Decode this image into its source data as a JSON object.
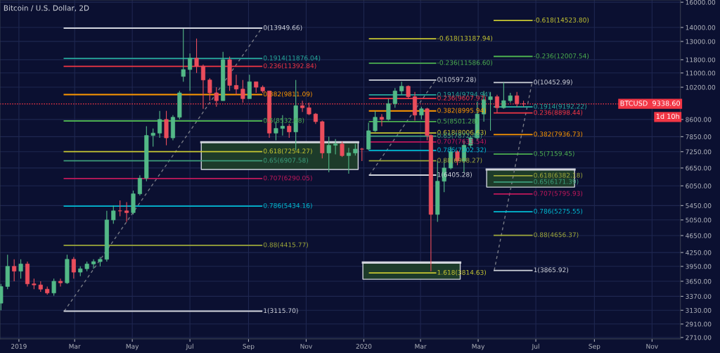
{
  "chart_data": {
    "type": "candlestick",
    "title": "Bitcoin / U.S. Dollar, 2D",
    "xlim": [
      "2018-12-12",
      "2020-12-01"
    ],
    "ylim": [
      2690,
      16190
    ],
    "log": true,
    "grid": true,
    "xticks": [
      {
        "value": "2019-01-01",
        "label": "2019"
      },
      {
        "value": "2019-03-01",
        "label": "Mar"
      },
      {
        "value": "2019-05-01",
        "label": "May"
      },
      {
        "value": "2019-07-01",
        "label": "Jul"
      },
      {
        "value": "2019-09-01",
        "label": "Sep"
      },
      {
        "value": "2019-11-01",
        "label": "Nov"
      },
      {
        "value": "2020-01-01",
        "label": "2020"
      },
      {
        "value": "2020-03-01",
        "label": "Mar"
      },
      {
        "value": "2020-05-01",
        "label": "May"
      },
      {
        "value": "2020-07-01",
        "label": "Jul"
      },
      {
        "value": "2020-09-01",
        "label": "Sep"
      },
      {
        "value": "2020-11-01",
        "label": "Nov"
      }
    ],
    "yticks": [
      {
        "value": 2710,
        "label": "2710.00"
      },
      {
        "value": 2910,
        "label": "2910.00"
      },
      {
        "value": 3130,
        "label": "3130.00"
      },
      {
        "value": 3370,
        "label": "3370.00"
      },
      {
        "value": 3650,
        "label": "3650.00"
      },
      {
        "value": 3950,
        "label": "3950.00"
      },
      {
        "value": 4250,
        "label": "4250.00"
      },
      {
        "value": 4650,
        "label": "4650.00"
      },
      {
        "value": 5050,
        "label": "5050.00"
      },
      {
        "value": 5450,
        "label": "5450.00"
      },
      {
        "value": 6050,
        "label": "6050.00"
      },
      {
        "value": 6650,
        "label": "6650.00"
      },
      {
        "value": 7250,
        "label": "7250.00"
      },
      {
        "value": 7850,
        "label": "7850.00"
      },
      {
        "value": 8600,
        "label": "8600.00"
      },
      {
        "value": 10200,
        "label": "10200.00"
      },
      {
        "value": 11000,
        "label": "11000.00"
      },
      {
        "value": 11800,
        "label": "11800.00"
      },
      {
        "value": 13000,
        "label": "13000.00"
      },
      {
        "value": 14000,
        "label": "14000.00"
      },
      {
        "value": 16000,
        "label": "16000.00"
      }
    ],
    "ref_lines": [
      {
        "axis": "y",
        "value": 9338.6,
        "label": "BTCUSD  9338.60",
        "color": "#f23645",
        "line_style": "dotted"
      }
    ],
    "annotations": [
      "1d 10h"
    ],
    "series": [
      {
        "type": "line",
        "x": [
          "2019-07-13",
          "2019-12-26"
        ],
        "values": [
          7625,
          7625
        ],
        "lower": [
          6600,
          6600
        ],
        "upper": [
          7625,
          7625
        ],
        "color": "#d1d4dc"
      },
      {
        "type": "line",
        "x": [
          "2019-12-31",
          "2020-04-12"
        ],
        "values": [
          4030,
          4030
        ],
        "lower": [
          3689,
          3689
        ],
        "upper": [
          4030,
          4030
        ],
        "color": "#d1d4dc"
      },
      {
        "type": "line",
        "x": [
          "2020-05-10",
          "2020-08-11"
        ],
        "values": [
          6600,
          6600
        ],
        "lower": [
          6010,
          6010
        ],
        "upper": [
          6600,
          6600
        ],
        "color": "#d1d4dc"
      },
      {
        "color": "#53b987",
        "x": [
          "2018-12-13",
          "2018-12-20",
          "2019-01-03",
          "2019-02-07",
          "2019-02-21",
          "2019-03-07",
          "2019-03-14",
          "2019-03-21",
          "2019-03-28",
          "2019-04-04",
          "2019-04-11",
          "2019-05-02",
          "2019-05-09",
          "2019-05-16",
          "2019-05-23",
          "2019-05-30",
          "2019-06-13",
          "2019-06-20",
          "2019-06-24",
          "2019-07-01",
          "2019-08-05",
          "2019-09-02",
          "2019-09-30",
          "2019-10-07",
          "2019-10-21",
          "2019-11-25",
          "2019-12-02",
          "2019-12-16",
          "2019-12-23",
          "2020-01-06",
          "2020-01-13",
          "2020-01-27",
          "2020-02-03",
          "2020-02-10",
          "2020-03-02",
          "2020-03-19",
          "2020-03-26",
          "2020-04-02",
          "2020-04-16",
          "2020-04-23",
          "2020-04-30",
          "2020-05-07",
          "2020-05-14",
          "2020-05-28",
          "2020-06-04"
        ],
        "ohlc": [
          [
            3250,
            3600,
            3130,
            3550
          ],
          [
            3550,
            4200,
            3500,
            3950
          ],
          [
            3850,
            4100,
            3700,
            4000
          ],
          [
            3430,
            3700,
            3380,
            3650
          ],
          [
            3620,
            4200,
            3600,
            4100
          ],
          [
            3830,
            3950,
            3750,
            3900
          ],
          [
            3900,
            4050,
            3850,
            4000
          ],
          [
            4000,
            4100,
            3900,
            4050
          ],
          [
            4050,
            4150,
            3950,
            4100
          ],
          [
            4100,
            5300,
            4050,
            5050
          ],
          [
            5050,
            5450,
            4950,
            5300
          ],
          [
            5250,
            5900,
            5200,
            5800
          ],
          [
            5800,
            6400,
            5750,
            6300
          ],
          [
            6300,
            8300,
            6200,
            7900
          ],
          [
            7900,
            8200,
            7450,
            8000
          ],
          [
            8000,
            9000,
            7800,
            8600
          ],
          [
            7800,
            8800,
            7700,
            8700
          ],
          [
            8700,
            10000,
            8600,
            9900
          ],
          [
            10800,
            13900,
            10500,
            11200
          ],
          [
            11200,
            12200,
            10000,
            11900
          ],
          [
            9500,
            12300,
            9500,
            11800
          ],
          [
            9600,
            10900,
            9600,
            10500
          ],
          [
            8000,
            8500,
            7700,
            8200
          ],
          [
            8200,
            8800,
            7900,
            8300
          ],
          [
            8050,
            10600,
            7300,
            9250
          ],
          [
            7200,
            7850,
            6500,
            7500
          ],
          [
            7500,
            7750,
            7150,
            7550
          ],
          [
            7100,
            7400,
            6450,
            7200
          ],
          [
            7200,
            7550,
            7100,
            7350
          ],
          [
            7350,
            8450,
            7300,
            8100
          ],
          [
            8100,
            9000,
            8050,
            8700
          ],
          [
            8600,
            9600,
            8550,
            9350
          ],
          [
            9350,
            10150,
            9150,
            10000
          ],
          [
            10000,
            10500,
            9800,
            10250
          ],
          [
            8800,
            9200,
            8600,
            9100
          ],
          [
            5200,
            6900,
            5000,
            6200
          ],
          [
            6200,
            6950,
            5850,
            6650
          ],
          [
            6650,
            7450,
            6600,
            7250
          ],
          [
            6900,
            7700,
            6500,
            7500
          ],
          [
            7500,
            7900,
            7400,
            7800
          ],
          [
            7800,
            9450,
            7700,
            8850
          ],
          [
            8850,
            10000,
            8500,
            9550
          ],
          [
            9550,
            9950,
            8100,
            9700
          ],
          [
            9150,
            10450,
            9100,
            9500
          ],
          [
            9500,
            9900,
            9400,
            9750
          ]
        ]
      },
      {
        "color": "#eb4d5c",
        "x": [
          "2018-12-27",
          "2019-01-10",
          "2019-01-17",
          "2019-01-24",
          "2019-01-31",
          "2019-02-14",
          "2019-02-28",
          "2019-04-18",
          "2019-04-25",
          "2019-06-06",
          "2019-07-08",
          "2019-07-15",
          "2019-07-22",
          "2019-07-29",
          "2019-08-12",
          "2019-08-19",
          "2019-08-26",
          "2019-09-09",
          "2019-09-16",
          "2019-09-23",
          "2019-10-14",
          "2019-10-28",
          "2019-11-04",
          "2019-11-11",
          "2019-11-18",
          "2019-12-09",
          "2019-12-30",
          "2020-01-20",
          "2020-02-17",
          "2020-02-24",
          "2020-03-08",
          "2020-03-12",
          "2020-04-09",
          "2020-05-21",
          "2020-06-11",
          "2020-06-18"
        ],
        "ohlc": [
          [
            3950,
            4100,
            3650,
            3850
          ],
          [
            4000,
            4050,
            3550,
            3600
          ],
          [
            3600,
            3700,
            3500,
            3580
          ],
          [
            3580,
            3650,
            3450,
            3500
          ],
          [
            3500,
            3550,
            3400,
            3430
          ],
          [
            3650,
            3700,
            3550,
            3620
          ],
          [
            4100,
            4150,
            3700,
            3830
          ],
          [
            5300,
            5600,
            5150,
            5300
          ],
          [
            5300,
            5550,
            5000,
            5250
          ],
          [
            8600,
            9000,
            7500,
            7800
          ],
          [
            11900,
            13200,
            11000,
            11400
          ],
          [
            11400,
            11500,
            9100,
            10600
          ],
          [
            10600,
            10700,
            9500,
            9900
          ],
          [
            9900,
            10200,
            9200,
            9500
          ],
          [
            11800,
            12000,
            10000,
            10300
          ],
          [
            10300,
            10900,
            9800,
            10100
          ],
          [
            10100,
            10600,
            9400,
            9600
          ],
          [
            10500,
            10500,
            9900,
            10200
          ],
          [
            10200,
            10300,
            9900,
            10000
          ],
          [
            10000,
            10000,
            7800,
            8000
          ],
          [
            8300,
            8400,
            7800,
            8050
          ],
          [
            9250,
            9500,
            8950,
            9150
          ],
          [
            9150,
            9400,
            8800,
            8850
          ],
          [
            8850,
            8900,
            8400,
            8500
          ],
          [
            8500,
            8550,
            7000,
            7200
          ],
          [
            7550,
            7650,
            7050,
            7100
          ],
          [
            7350,
            7400,
            6900,
            7350
          ],
          [
            8700,
            8850,
            8300,
            8600
          ],
          [
            10250,
            10300,
            9600,
            9700
          ],
          [
            9700,
            9950,
            8550,
            8800
          ],
          [
            9100,
            9150,
            7700,
            7900
          ],
          [
            7900,
            7950,
            3850,
            5200
          ],
          [
            7250,
            7300,
            6750,
            6900
          ],
          [
            9700,
            9800,
            8900,
            9150
          ],
          [
            9750,
            9950,
            9200,
            9350
          ],
          [
            9350,
            9500,
            9200,
            9338.6
          ]
        ]
      },
      {
        "type": "line",
        "x": [
          "2019-02-18",
          "2019-09-15"
        ],
        "values": [
          3115.7,
          13949.66
        ],
        "color": "#787b86",
        "line_style": "dashed"
      },
      {
        "type": "line",
        "x": [
          "2020-01-07",
          "2020-03-17"
        ],
        "values": [
          6405.28,
          10597.28
        ],
        "color": "#787b86",
        "line_style": "dashed"
      },
      {
        "type": "line",
        "x": [
          "2020-05-18",
          "2020-06-27"
        ],
        "values": [
          3865.92,
          10452.99
        ],
        "color": "#787b86",
        "line_style": "dashed"
      },
      {
        "type": "line",
        "x": [
          "2019-02-18",
          "2019-09-15"
        ],
        "values": [
          13949.66,
          13949.66
        ],
        "color": "#d1d4dc",
        "name": "0(13949.66)"
      },
      {
        "type": "line",
        "x": [
          "2019-02-18",
          "2019-09-15"
        ],
        "values": [
          11876.04,
          11876.04
        ],
        "color": "#26a69a",
        "name": "0.1914(11876.04)"
      },
      {
        "type": "line",
        "x": [
          "2019-02-18",
          "2019-09-15"
        ],
        "values": [
          11392.84,
          11392.84
        ],
        "color": "#f23645",
        "name": "0.236(11392.84)"
      },
      {
        "type": "line",
        "x": [
          "2019-02-18",
          "2019-09-15"
        ],
        "values": [
          9811.09,
          9811.09
        ],
        "color": "#ff9800",
        "name": "0.382(9811.09)"
      },
      {
        "type": "line",
        "x": [
          "2019-02-18",
          "2019-09-15"
        ],
        "values": [
          8532.68,
          8532.68
        ],
        "color": "#4caf50",
        "name": "0.5(8532.68)"
      },
      {
        "type": "line",
        "x": [
          "2019-02-18",
          "2019-09-15"
        ],
        "values": [
          7254.27,
          7254.27
        ],
        "color": "#c8c832",
        "name": "0.618(7254.27)"
      },
      {
        "type": "line",
        "x": [
          "2019-02-18",
          "2019-09-15"
        ],
        "values": [
          6907.58,
          6907.58
        ],
        "color": "#3c9d7b",
        "name": "0.65(6907.58)"
      },
      {
        "type": "line",
        "x": [
          "2019-02-18",
          "2019-09-15"
        ],
        "values": [
          6290.05,
          6290.05
        ],
        "color": "#c2185b",
        "name": "0.707(6290.05)"
      },
      {
        "type": "line",
        "x": [
          "2019-02-18",
          "2019-09-15"
        ],
        "values": [
          5434.16,
          5434.16
        ],
        "color": "#00bcd4",
        "name": "0.786(5434.16)"
      },
      {
        "type": "line",
        "x": [
          "2019-02-18",
          "2019-09-15"
        ],
        "values": [
          4415.77,
          4415.77
        ],
        "color": "#9ea83a",
        "name": "0.88(4415.77)"
      },
      {
        "type": "line",
        "x": [
          "2019-02-18",
          "2019-09-15"
        ],
        "values": [
          3115.7,
          3115.7
        ],
        "color": "#d1d4dc",
        "name": "1(3115.70)"
      },
      {
        "type": "line",
        "x": [
          "2020-01-07",
          "2020-03-17"
        ],
        "values": [
          13187.94,
          13187.94
        ],
        "color": "#c8c832",
        "name": "-0.618(13187.94)"
      },
      {
        "type": "line",
        "x": [
          "2020-01-07",
          "2020-03-17"
        ],
        "values": [
          11586.6,
          11586.6
        ],
        "color": "#4caf50",
        "name": "-0.236(11586.60)"
      },
      {
        "type": "line",
        "x": [
          "2020-01-07",
          "2020-03-17"
        ],
        "values": [
          10597.28,
          10597.28
        ],
        "color": "#d1d4dc",
        "name": "0(10597.28)"
      },
      {
        "type": "line",
        "x": [
          "2020-01-07",
          "2020-03-17"
        ],
        "values": [
          9794.94,
          9794.94
        ],
        "color": "#26a69a",
        "name": "0.1914(9794.94)"
      },
      {
        "type": "line",
        "x": [
          "2020-01-07",
          "2020-03-17"
        ],
        "values": [
          9607.97,
          9607.97
        ],
        "color": "#f23645",
        "name": "0.236(9607.97)"
      },
      {
        "type": "line",
        "x": [
          "2020-01-07",
          "2020-03-17"
        ],
        "values": [
          8995.94,
          8995.94
        ],
        "color": "#ff9800",
        "name": "0.382(8995.94)"
      },
      {
        "type": "line",
        "x": [
          "2020-01-07",
          "2020-03-17"
        ],
        "values": [
          8501.28,
          8501.28
        ],
        "color": "#4caf50",
        "name": "0.5(8501.28)"
      },
      {
        "type": "line",
        "x": [
          "2020-01-07",
          "2020-03-17"
        ],
        "values": [
          8006.63,
          8006.63
        ],
        "color": "#c8c832",
        "name": "0.618(8006.63)"
      },
      {
        "type": "line",
        "x": [
          "2020-01-07",
          "2020-03-17"
        ],
        "values": [
          7872.48,
          7872.48
        ],
        "color": "#3c9d7b",
        "name": "0.65(7872.48)"
      },
      {
        "type": "line",
        "x": [
          "2020-01-07",
          "2020-03-17"
        ],
        "values": [
          7633.54,
          7633.54
        ],
        "color": "#c2185b",
        "name": "0.707(7633.54)"
      },
      {
        "type": "line",
        "x": [
          "2020-01-07",
          "2020-03-17"
        ],
        "values": [
          7302.32,
          7302.32
        ],
        "color": "#00bcd4",
        "name": "0.786(7302.32)"
      },
      {
        "type": "line",
        "x": [
          "2020-01-07",
          "2020-03-17"
        ],
        "values": [
          6908.27,
          6908.27
        ],
        "color": "#9ea83a",
        "name": "0.88(6908.27)"
      },
      {
        "type": "line",
        "x": [
          "2020-01-07",
          "2020-03-17"
        ],
        "values": [
          6405.28,
          6405.28
        ],
        "color": "#d1d4dc",
        "name": "1(6405.28)"
      },
      {
        "type": "line",
        "x": [
          "2020-01-07",
          "2020-03-17"
        ],
        "values": [
          3814.63,
          3814.63
        ],
        "color": "#c8c832",
        "name": "1.618(3814.63)"
      },
      {
        "type": "line",
        "x": [
          "2020-05-18",
          "2020-06-27"
        ],
        "values": [
          14523.8,
          14523.8
        ],
        "color": "#c8c832",
        "name": "-0.618(14523.80)"
      },
      {
        "type": "line",
        "x": [
          "2020-05-18",
          "2020-06-27"
        ],
        "values": [
          12007.54,
          12007.54
        ],
        "color": "#4caf50",
        "name": "-0.236(12007.54)"
      },
      {
        "type": "line",
        "x": [
          "2020-05-18",
          "2020-06-27"
        ],
        "values": [
          10452.99,
          10452.99
        ],
        "color": "#d1d4dc",
        "name": "0(10452.99)"
      },
      {
        "type": "line",
        "x": [
          "2020-05-18",
          "2020-06-27"
        ],
        "values": [
          9192.22,
          9192.22
        ],
        "color": "#26a69a",
        "name": "0.1914(9192.22)"
      },
      {
        "type": "line",
        "x": [
          "2020-05-18",
          "2020-06-27"
        ],
        "values": [
          8898.44,
          8898.44
        ],
        "color": "#f23645",
        "name": "0.236(8898.44)"
      },
      {
        "type": "line",
        "x": [
          "2020-05-18",
          "2020-06-27"
        ],
        "values": [
          7936.73,
          7936.73
        ],
        "color": "#ff9800",
        "name": "0.382(7936.73)"
      },
      {
        "type": "line",
        "x": [
          "2020-05-18",
          "2020-06-27"
        ],
        "values": [
          7159.45,
          7159.45
        ],
        "color": "#4caf50",
        "name": "0.5(7159.45)"
      },
      {
        "type": "line",
        "x": [
          "2020-05-18",
          "2020-06-27"
        ],
        "values": [
          6382.18,
          6382.18
        ],
        "color": "#9ea83a",
        "name": "0.618(6382.18)"
      },
      {
        "type": "line",
        "x": [
          "2020-05-18",
          "2020-06-27"
        ],
        "values": [
          6171.39,
          6171.39
        ],
        "color": "#3c9d7b",
        "name": "0.65(6171.39)"
      },
      {
        "type": "line",
        "x": [
          "2020-05-18",
          "2020-06-27"
        ],
        "values": [
          5795.93,
          5795.93
        ],
        "color": "#c2185b",
        "name": "0.707(5795.93)"
      },
      {
        "type": "line",
        "x": [
          "2020-05-18",
          "2020-06-27"
        ],
        "values": [
          5275.55,
          5275.55
        ],
        "color": "#00bcd4",
        "name": "0.786(5275.55)"
      },
      {
        "type": "line",
        "x": [
          "2020-05-18",
          "2020-06-27"
        ],
        "values": [
          4656.37,
          4656.37
        ],
        "color": "#9ea83a",
        "name": "0.88(4656.37)"
      },
      {
        "type": "line",
        "x": [
          "2020-05-18",
          "2020-06-27"
        ],
        "values": [
          3865.92,
          3865.92
        ],
        "color": "#d1d4dc",
        "name": "1(3865.92)"
      }
    ]
  }
}
